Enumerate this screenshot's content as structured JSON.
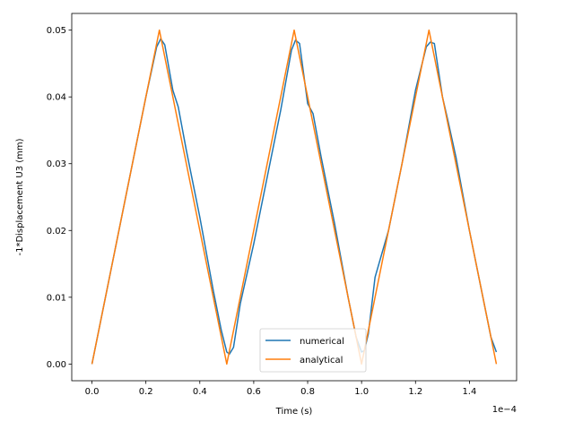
{
  "chart_data": {
    "type": "line",
    "xlabel": "Time (s)",
    "ylabel": "-1*Displacement U3 (mm)",
    "x_offset_label": "1e−4",
    "xlim": [
      -0.075,
      1.575
    ],
    "ylim": [
      -0.0025,
      0.0525
    ],
    "x_ticks": [
      0.0,
      0.2,
      0.4,
      0.6,
      0.8,
      1.0,
      1.2,
      1.4
    ],
    "x_tick_labels": [
      "0.0",
      "0.2",
      "0.4",
      "0.6",
      "0.8",
      "1.0",
      "1.2",
      "1.4"
    ],
    "y_ticks": [
      0.0,
      0.01,
      0.02,
      0.03,
      0.04,
      0.05
    ],
    "y_tick_labels": [
      "0.00",
      "0.01",
      "0.02",
      "0.03",
      "0.04",
      "0.05"
    ],
    "grid": false,
    "legend_position": "lower-center",
    "series": [
      {
        "name": "numerical",
        "color": "#1f77b4",
        "x": [
          0.0,
          0.02,
          0.05,
          0.1,
          0.15,
          0.2,
          0.24,
          0.255,
          0.27,
          0.3,
          0.32,
          0.35,
          0.4,
          0.45,
          0.48,
          0.5,
          0.51,
          0.525,
          0.55,
          0.6,
          0.65,
          0.7,
          0.74,
          0.755,
          0.77,
          0.8,
          0.82,
          0.85,
          0.9,
          0.95,
          0.98,
          1.0,
          1.01,
          1.025,
          1.05,
          1.1,
          1.15,
          1.2,
          1.24,
          1.255,
          1.27,
          1.3,
          1.32,
          1.35,
          1.4,
          1.45,
          1.48,
          1.5
        ],
        "values": [
          0.0,
          0.004,
          0.01,
          0.02,
          0.03,
          0.04,
          0.0475,
          0.0487,
          0.0478,
          0.041,
          0.0385,
          0.032,
          0.022,
          0.011,
          0.005,
          0.0018,
          0.0015,
          0.0025,
          0.009,
          0.018,
          0.028,
          0.038,
          0.047,
          0.0485,
          0.048,
          0.039,
          0.0375,
          0.031,
          0.021,
          0.01,
          0.004,
          0.0018,
          0.002,
          0.0045,
          0.013,
          0.02,
          0.03,
          0.041,
          0.0475,
          0.0482,
          0.048,
          0.04,
          0.0365,
          0.031,
          0.02,
          0.01,
          0.004,
          0.0018
        ]
      },
      {
        "name": "analytical",
        "color": "#ff7f0e",
        "x": [
          0.0,
          0.25,
          0.5,
          0.75,
          1.0,
          1.25,
          1.5
        ],
        "values": [
          0.0,
          0.05,
          0.0,
          0.05,
          0.0,
          0.05,
          0.0
        ]
      }
    ]
  }
}
